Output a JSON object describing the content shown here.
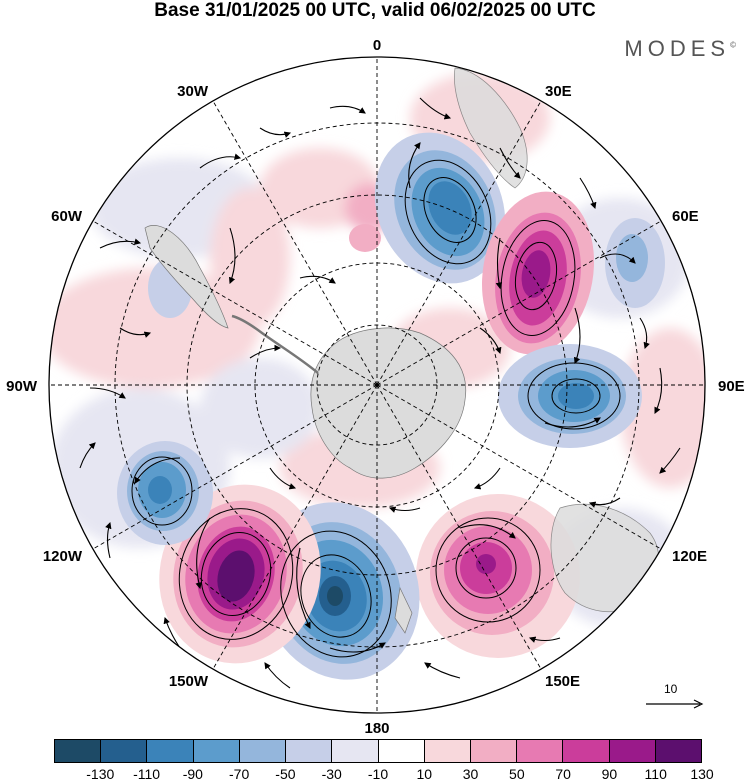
{
  "title": "Base 31/01/2025 00 UTC, valid 06/02/2025 00 UTC",
  "brand": "MODES",
  "brand_mark": "©",
  "longitude_labels": {
    "n0": "0",
    "n30e": "30E",
    "n60e": "60E",
    "n90e": "90E",
    "n120e": "120E",
    "n150e": "150E",
    "n180": "180",
    "n150w": "150W",
    "n120w": "120W",
    "n90w": "90W",
    "n60w": "60W",
    "n30w": "30W"
  },
  "reference_vector": "10",
  "colorbar": {
    "levels": [
      "-130",
      "-110",
      "-90",
      "-70",
      "-50",
      "-30",
      "-10",
      "10",
      "30",
      "50",
      "70",
      "90",
      "110",
      "130"
    ],
    "colors": [
      "#1d4a66",
      "#245f8e",
      "#3b83b9",
      "#5c9ccc",
      "#94b6dc",
      "#c6cfe8",
      "#e6e6f2",
      "#ffffff",
      "#f8d8dc",
      "#f2aec4",
      "#e77ab2",
      "#cb3d9b",
      "#9a1a8a",
      "#5c0f6e"
    ]
  },
  "colors": {
    "land": "#dcdcdc",
    "ocean": "#ffffff"
  }
}
